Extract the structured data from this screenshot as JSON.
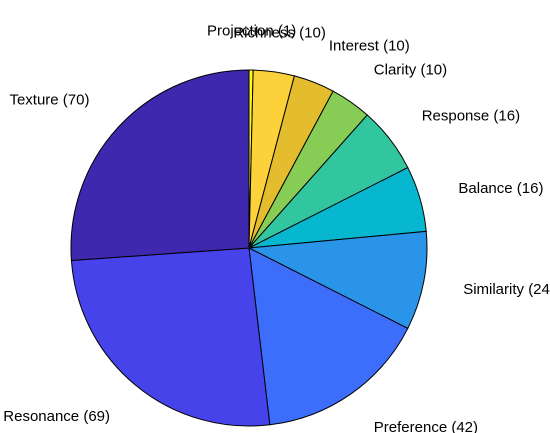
{
  "chart_data": {
    "type": "pie",
    "categories": [
      "Projection",
      "Richness",
      "Interest",
      "Clarity",
      "Response",
      "Balance",
      "Similarity",
      "Preference",
      "Resonance",
      "Texture"
    ],
    "values": [
      1,
      10,
      10,
      10,
      16,
      16,
      24,
      42,
      69,
      70
    ],
    "labels": [
      "Projection (1)",
      "Richness (10)",
      "Interest (10)",
      "Clarity (10)",
      "Response (16)",
      "Balance (16)",
      "Similarity (24)",
      "Preference (42)",
      "Resonance (69)",
      "Texture (70)"
    ],
    "colors": [
      "#F9FB15",
      "#FCD13A",
      "#E3BD2E",
      "#86CC55",
      "#31C69F",
      "#07B7CF",
      "#2A94E9",
      "#3D6DFB",
      "#4743EA",
      "#3E29AE"
    ],
    "start": "12 o'clock",
    "direction": "clockwise",
    "slice_edge_color": "#000000"
  }
}
